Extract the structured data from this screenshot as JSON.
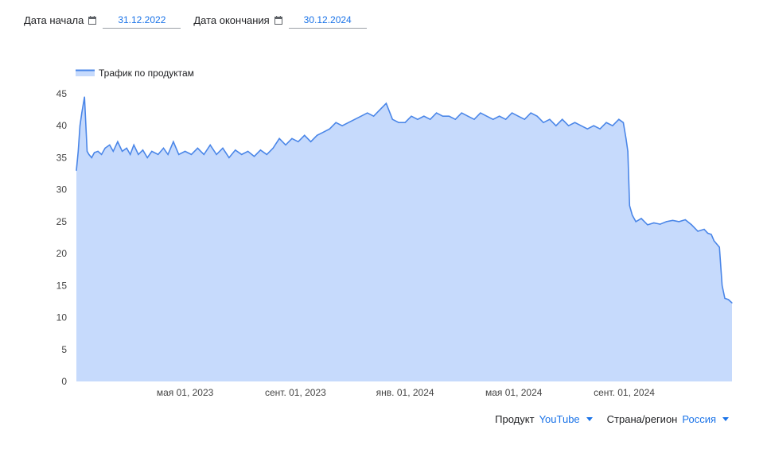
{
  "date_range": {
    "start_label": "Дата начала",
    "start_value": "31.12.2022",
    "end_label": "Дата окончания",
    "end_value": "30.12.2024"
  },
  "filters": {
    "product_label": "Продукт",
    "product_value": "YouTube",
    "region_label": "Страна/регион",
    "region_value": "Россия"
  },
  "colors": {
    "accent": "#1a73e8",
    "series_line": "#4a86e8",
    "series_fill": "#c6dafc"
  },
  "chart_data": {
    "type": "area",
    "legend": {
      "position": "top-left",
      "entries": [
        "Трафик по продуктам"
      ]
    },
    "title": "",
    "xlabel": "",
    "ylabel": "",
    "ylim": [
      0,
      45
    ],
    "yticks": [
      0,
      5,
      10,
      15,
      20,
      25,
      30,
      35,
      40,
      45
    ],
    "xlim": [
      "2022-12-31",
      "2024-12-30"
    ],
    "xticks": [
      {
        "date": "2023-05-01",
        "label": "мая 01, 2023"
      },
      {
        "date": "2023-09-01",
        "label": "сент. 01, 2023"
      },
      {
        "date": "2024-01-01",
        "label": "янв. 01, 2024"
      },
      {
        "date": "2024-05-01",
        "label": "мая 01, 2024"
      },
      {
        "date": "2024-09-01",
        "label": "сент. 01, 2024"
      }
    ],
    "grid": false,
    "series": [
      {
        "name": "Трафик по продуктам",
        "x": [
          "2022-12-31",
          "2023-01-02",
          "2023-01-04",
          "2023-01-06",
          "2023-01-09",
          "2023-01-12",
          "2023-01-14",
          "2023-01-17",
          "2023-01-20",
          "2023-01-24",
          "2023-01-28",
          "2023-02-01",
          "2023-02-06",
          "2023-02-10",
          "2023-02-15",
          "2023-02-20",
          "2023-02-25",
          "2023-03-01",
          "2023-03-05",
          "2023-03-10",
          "2023-03-15",
          "2023-03-20",
          "2023-03-25",
          "2023-04-01",
          "2023-04-07",
          "2023-04-12",
          "2023-04-18",
          "2023-04-24",
          "2023-05-01",
          "2023-05-08",
          "2023-05-15",
          "2023-05-22",
          "2023-05-29",
          "2023-06-05",
          "2023-06-12",
          "2023-06-19",
          "2023-06-26",
          "2023-07-03",
          "2023-07-10",
          "2023-07-17",
          "2023-07-24",
          "2023-07-31",
          "2023-08-07",
          "2023-08-14",
          "2023-08-21",
          "2023-08-28",
          "2023-09-04",
          "2023-09-11",
          "2023-09-18",
          "2023-09-25",
          "2023-10-02",
          "2023-10-09",
          "2023-10-16",
          "2023-10-23",
          "2023-10-30",
          "2023-11-06",
          "2023-11-13",
          "2023-11-20",
          "2023-11-27",
          "2023-12-04",
          "2023-12-11",
          "2023-12-18",
          "2023-12-25",
          "2024-01-01",
          "2024-01-08",
          "2024-01-15",
          "2024-01-22",
          "2024-01-29",
          "2024-02-05",
          "2024-02-12",
          "2024-02-19",
          "2024-02-26",
          "2024-03-04",
          "2024-03-11",
          "2024-03-18",
          "2024-03-25",
          "2024-04-01",
          "2024-04-08",
          "2024-04-15",
          "2024-04-22",
          "2024-04-29",
          "2024-05-06",
          "2024-05-13",
          "2024-05-20",
          "2024-05-27",
          "2024-06-03",
          "2024-06-10",
          "2024-06-17",
          "2024-06-24",
          "2024-07-01",
          "2024-07-08",
          "2024-07-15",
          "2024-07-22",
          "2024-07-29",
          "2024-08-05",
          "2024-08-12",
          "2024-08-19",
          "2024-08-26",
          "2024-08-31",
          "2024-09-03",
          "2024-09-05",
          "2024-09-07",
          "2024-09-10",
          "2024-09-14",
          "2024-09-20",
          "2024-09-27",
          "2024-10-04",
          "2024-10-11",
          "2024-10-18",
          "2024-10-25",
          "2024-11-01",
          "2024-11-08",
          "2024-11-15",
          "2024-11-22",
          "2024-11-29",
          "2024-12-03",
          "2024-12-07",
          "2024-12-10",
          "2024-12-13",
          "2024-12-16",
          "2024-12-19",
          "2024-12-22",
          "2024-12-26",
          "2024-12-30"
        ],
        "values": [
          33,
          36,
          40,
          42,
          44.5,
          36,
          35.5,
          35,
          35.8,
          36,
          35.5,
          36.5,
          37,
          36,
          37.5,
          36,
          36.5,
          35.5,
          37,
          35.5,
          36.2,
          35,
          36,
          35.5,
          36.5,
          35.5,
          37.5,
          35.5,
          36,
          35.5,
          36.5,
          35.5,
          37,
          35.5,
          36.5,
          35,
          36.2,
          35.5,
          36,
          35.2,
          36.2,
          35.5,
          36.5,
          38,
          37,
          38,
          37.5,
          38.5,
          37.5,
          38.5,
          39,
          39.5,
          40.5,
          40,
          40.5,
          41,
          41.5,
          42,
          41.5,
          42.5,
          43.5,
          41,
          40.5,
          40.5,
          41.5,
          41,
          41.5,
          41,
          42,
          41.5,
          41.5,
          41,
          42,
          41.5,
          41,
          42,
          41.5,
          41,
          41.5,
          41,
          42,
          41.5,
          41,
          42,
          41.5,
          40.5,
          41,
          40,
          41,
          40,
          40.5,
          40,
          39.5,
          40,
          39.5,
          40.5,
          40,
          41,
          40.5,
          38,
          36,
          27.5,
          26,
          25,
          25.5,
          24.5,
          24.8,
          24.6,
          25,
          25.2,
          25,
          25.3,
          24.5,
          23.5,
          23.8,
          23.2,
          23,
          22,
          21.5,
          21,
          15,
          13,
          12.8,
          12.3
        ]
      }
    ]
  }
}
